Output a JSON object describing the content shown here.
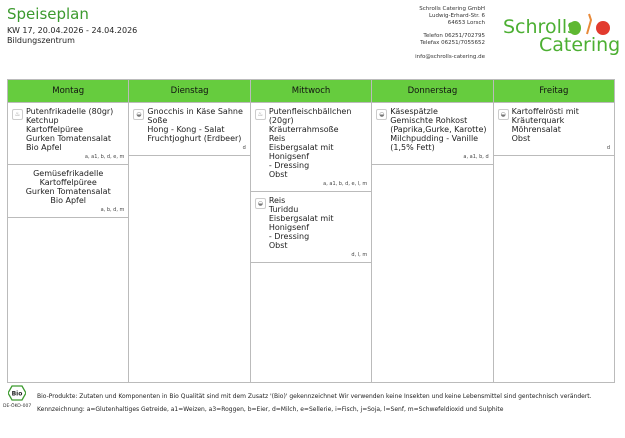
{
  "header": {
    "title": "Speiseplan",
    "week": "KW 17, 20.04.2026 - 24.04.2026",
    "location": "Bildungszentrum"
  },
  "company": {
    "name": "Schrolls Catering GmbH",
    "street": "Ludwig-Erhard-Str. 6",
    "city": "64653 Lorsch",
    "phone": "Telefon 06251/702795",
    "fax": "Telefax 06251/7055652",
    "email": "info@schrolls-catering.de",
    "logo_line1": "Schrolls",
    "logo_line2": "Catering",
    "brand_color": "#4caf32"
  },
  "days": [
    {
      "name": "Montag",
      "meals": [
        {
          "icon": "poultry-icon",
          "text": "Putenfrikadelle (80gr)\nKetchup\nKartoffelpüree\nGurken Tomatensalat\nBio Apfel",
          "allergens": "a, a1, b, d, e, m"
        },
        {
          "icon": "",
          "text": "Gemüsefrikadelle\nKartoffelpüree\nGurken Tomatensalat\nBio Apfel",
          "allergens": "a, b, d, m"
        }
      ]
    },
    {
      "name": "Dienstag",
      "meals": [
        {
          "icon": "vegetarian-icon",
          "text": "Gnocchis in Käse Sahne Soße\nHong - Kong - Salat\nFruchtjoghurt (Erdbeer)",
          "allergens": "d"
        }
      ]
    },
    {
      "name": "Mittwoch",
      "meals": [
        {
          "icon": "poultry-icon",
          "text": "Putenfleischbällchen (20gr)\nKräuterrahmsoße\nReis\nEisbergsalat mit Honigsenf\n - Dressing\nObst",
          "allergens": "a, a1, b, d, e, l, m"
        },
        {
          "icon": "vegetarian-icon",
          "text": "Reis\nTuriddu\nEisbergsalat mit Honigsenf\n - Dressing\nObst",
          "allergens": "d, l, m"
        }
      ]
    },
    {
      "name": "Donnerstag",
      "meals": [
        {
          "icon": "vegetarian-icon",
          "text": "Käsespätzle\nGemischte Rohkost\n(Paprika,Gurke, Karotte)\nMilchpudding - Vanille\n(1,5% Fett)",
          "allergens": "a, a1, b, d"
        }
      ]
    },
    {
      "name": "Freitag",
      "meals": [
        {
          "icon": "vegetarian-icon",
          "text": "Kartoffelrösti mit\nKräuterquark\nMöhrensalat\nObst",
          "allergens": "d"
        }
      ]
    }
  ],
  "footer": {
    "bio_logo": "Bio",
    "bio_code": "DE-ÖKO-007",
    "bio_note": "Bio-Produkte: Zutaten und Komponenten in Bio Qualität sind mit dem Zusatz '(Bio)' gekennzeichnet Wir verwenden keine Insekten und keine Lebensmittel sind gentechnisch verändert.",
    "legend": "Kennzeichnung: a=Glutenhaltiges Getreide, a1=Weizen, a3=Roggen, b=Eier, d=Milch, e=Sellerie, i=Fisch, j=Soja, l=Senf, m=Schwefeldioxid und Sulphite"
  },
  "colors": {
    "header_green": "#66cc3e",
    "title_green": "#3c9a2e"
  }
}
